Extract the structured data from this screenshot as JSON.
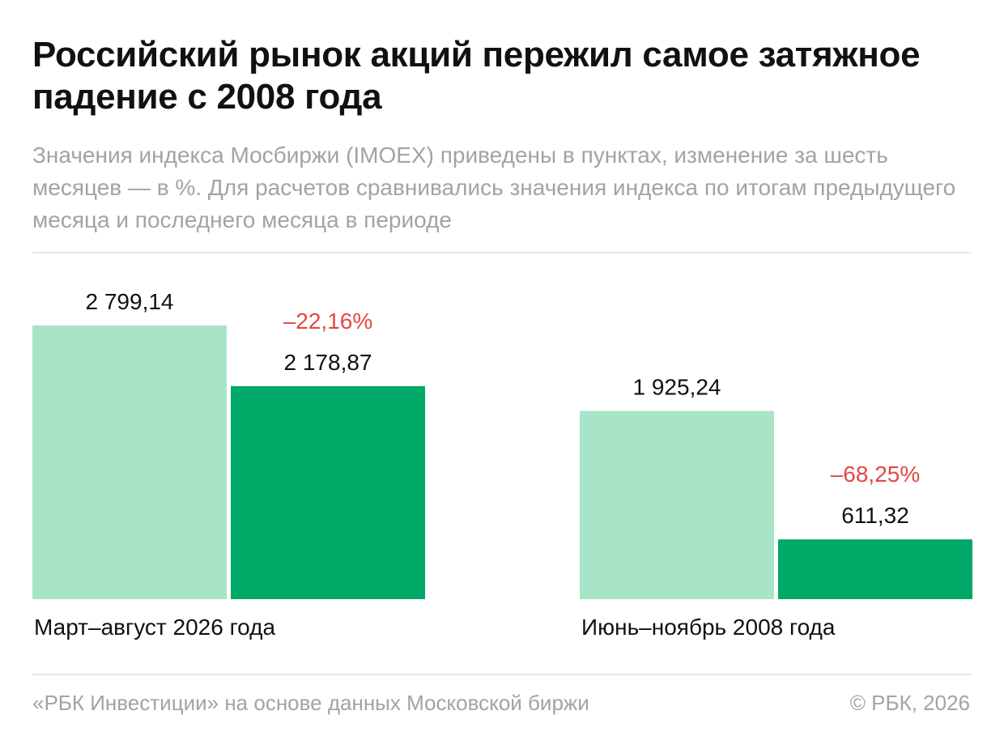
{
  "header": {
    "title": "Российский рынок акций пережил самое затяжное падение с 2008 года",
    "subtitle": "Значения индекса Мосбиржи (IMOEX) приведены в пунктах, изменение за шесть месяцев — в %. Для расчетов сравнивались значения индекса по итогам предыдущего месяца и последнего месяца в периоде"
  },
  "footer": {
    "source": "«РБК Инвестиции» на основе данных Московской биржи",
    "copyright": "© РБК, 2026"
  },
  "colors": {
    "start_bar": "#a8e4c8",
    "end_bar": "#00a968",
    "change_text": "#e64646"
  },
  "chart_data": {
    "type": "bar",
    "title": "Российский рынок акций пережил самое затяжное падение с 2008 года",
    "unit": "пункты",
    "categories": [
      "Март–август 2026 года",
      "Июнь–ноябрь 2008 года"
    ],
    "groups": [
      {
        "category": "Март–август 2026 года",
        "start_value": 2799.14,
        "start_label": "2 799,14",
        "end_value": 2178.87,
        "end_label": "2 178,87",
        "change_label": "–22,16%"
      },
      {
        "category": "Июнь–ноябрь 2008 года",
        "start_value": 1925.24,
        "start_label": "1 925,24",
        "end_value": 611.32,
        "end_label": "611,32",
        "change_label": "–68,25%"
      }
    ],
    "ylim": [
      0,
      2799.14
    ],
    "grid": false,
    "legend": "none"
  }
}
